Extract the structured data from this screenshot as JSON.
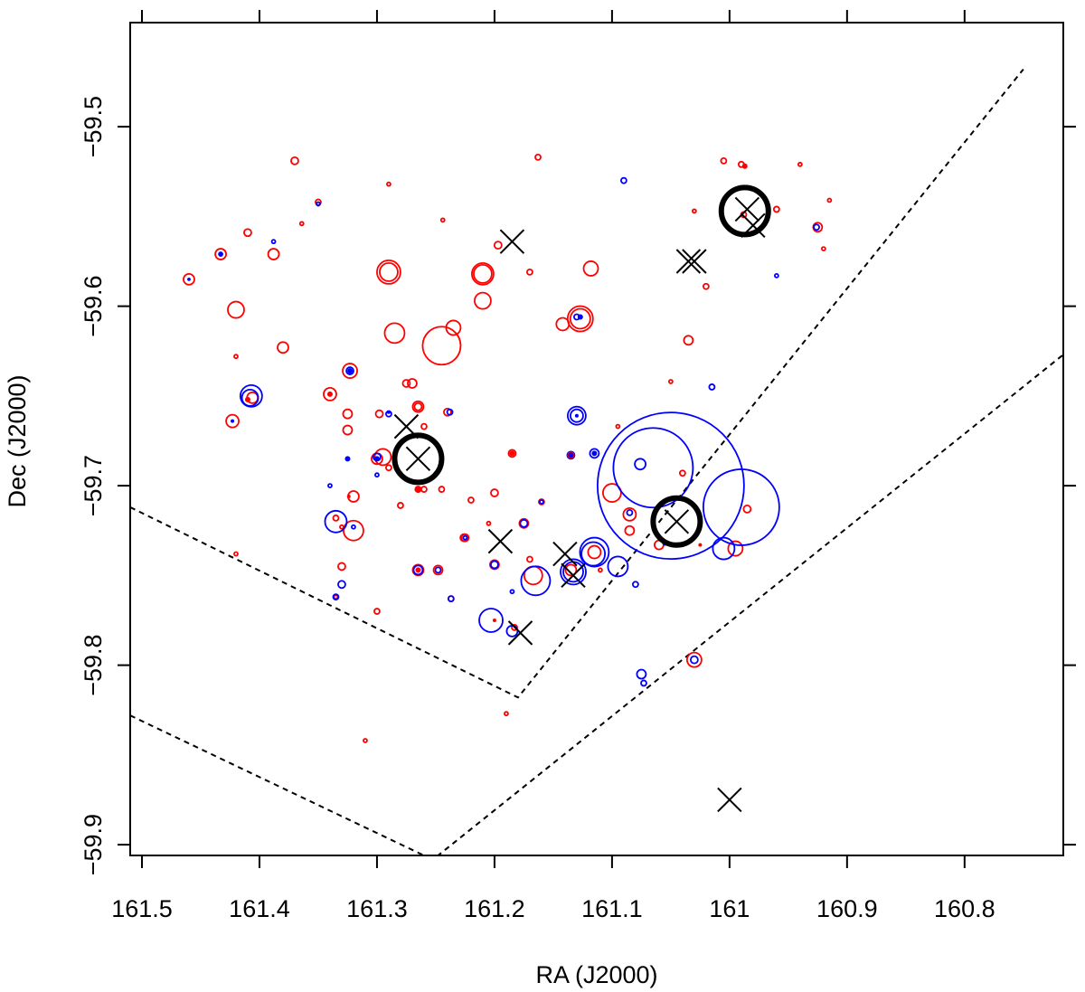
{
  "chart_data": {
    "type": "scatter",
    "title": "",
    "xlabel": "RA (J2000)",
    "ylabel": "Dec (J2000)",
    "xlim": [
      161.51,
      160.716
    ],
    "ylim": [
      -59.906,
      -59.442
    ],
    "x_ticks": [
      161.5,
      161.4,
      161.3,
      161.2,
      161.1,
      161.0,
      160.9,
      160.8
    ],
    "x_tick_labels": [
      "161.5",
      "161.4",
      "161.3",
      "161.2",
      "161.1",
      "161",
      "160.9",
      "160.8"
    ],
    "y_ticks": [
      -59.5,
      -59.6,
      -59.7,
      -59.8,
      -59.9
    ],
    "y_tick_labels": [
      "−59.5",
      "−59.6",
      "−59.7",
      "−59.8",
      "−59.9"
    ],
    "colors": {
      "red": "#ff0000",
      "blue": "#0000ff",
      "black": "#000000"
    },
    "series": [
      {
        "name": "red circles",
        "color": "red",
        "points": [
          [
            161.46,
            -59.585,
            6
          ],
          [
            161.433,
            -59.571,
            6
          ],
          [
            161.42,
            -59.602,
            9
          ],
          [
            161.41,
            -59.559,
            4
          ],
          [
            161.388,
            -59.571,
            6
          ],
          [
            161.38,
            -59.623,
            6
          ],
          [
            161.37,
            -59.519,
            4
          ],
          [
            161.29,
            -59.581,
            13
          ],
          [
            161.29,
            -59.581,
            10
          ],
          [
            161.285,
            -59.615,
            11
          ],
          [
            161.245,
            -59.622,
            21
          ],
          [
            161.235,
            -59.612,
            8
          ],
          [
            161.21,
            -59.582,
            12
          ],
          [
            161.21,
            -59.582,
            10
          ],
          [
            161.21,
            -59.597,
            9
          ],
          [
            161.118,
            -59.579,
            8
          ],
          [
            161.127,
            -59.607,
            14
          ],
          [
            161.127,
            -59.607,
            11
          ],
          [
            161.142,
            -59.61,
            7
          ],
          [
            161.17,
            -59.581,
            3
          ],
          [
            161.163,
            -59.517,
            3
          ],
          [
            161.197,
            -59.566,
            4
          ],
          [
            161.244,
            -59.552,
            2
          ],
          [
            161.29,
            -59.532,
            2
          ],
          [
            161.364,
            -59.554,
            2
          ],
          [
            161.35,
            -59.542,
            3
          ],
          [
            161.42,
            -59.628,
            2
          ],
          [
            161.423,
            -59.664,
            7
          ],
          [
            161.406,
            -59.651,
            6
          ],
          [
            161.323,
            -59.636,
            8
          ],
          [
            161.34,
            -59.649,
            7
          ],
          [
            161.325,
            -59.66,
            5
          ],
          [
            161.325,
            -59.669,
            5
          ],
          [
            161.298,
            -59.66,
            4
          ],
          [
            161.3,
            -59.685,
            6
          ],
          [
            161.295,
            -59.684,
            9
          ],
          [
            161.275,
            -59.643,
            4
          ],
          [
            161.27,
            -59.643,
            5
          ],
          [
            161.265,
            -59.656,
            6
          ],
          [
            161.265,
            -59.656,
            4
          ],
          [
            161.24,
            -59.659,
            4
          ],
          [
            161.26,
            -59.667,
            3
          ],
          [
            161.32,
            -59.706,
            6
          ],
          [
            161.28,
            -59.711,
            3
          ],
          [
            161.245,
            -59.702,
            3
          ],
          [
            161.22,
            -59.708,
            3
          ],
          [
            161.2,
            -59.704,
            4
          ],
          [
            161.185,
            -59.682,
            4
          ],
          [
            161.226,
            -59.729,
            4
          ],
          [
            161.32,
            -59.725,
            11
          ],
          [
            161.335,
            -59.718,
            3
          ],
          [
            161.33,
            -59.723,
            2
          ],
          [
            161.33,
            -59.745,
            4
          ],
          [
            161.335,
            -59.762,
            2
          ],
          [
            161.3,
            -59.77,
            3
          ],
          [
            161.265,
            -59.747,
            6
          ],
          [
            161.248,
            -59.747,
            5
          ],
          [
            161.237,
            -59.763,
            3
          ],
          [
            161.2,
            -59.744,
            5
          ],
          [
            161.175,
            -59.721,
            5
          ],
          [
            161.167,
            -59.75,
            10
          ],
          [
            161.16,
            -59.709,
            3
          ],
          [
            161.17,
            -59.741,
            3
          ],
          [
            161.135,
            -59.747,
            6
          ],
          [
            161.115,
            -59.737,
            7
          ],
          [
            161.11,
            -59.747,
            2
          ],
          [
            161.1,
            -59.704,
            10
          ],
          [
            161.085,
            -59.716,
            7
          ],
          [
            161.085,
            -59.725,
            5
          ],
          [
            161.095,
            -59.667,
            2
          ],
          [
            161.06,
            -59.733,
            5
          ],
          [
            161.05,
            -59.642,
            2
          ],
          [
            161.04,
            -59.693,
            3
          ],
          [
            161.035,
            -59.619,
            5
          ],
          [
            161.02,
            -59.589,
            3
          ],
          [
            161.005,
            -59.519,
            3
          ],
          [
            160.99,
            -59.521,
            3
          ],
          [
            160.988,
            -59.549,
            3
          ],
          [
            160.96,
            -59.546,
            3
          ],
          [
            160.94,
            -59.521,
            2
          ],
          [
            160.925,
            -59.556,
            5
          ],
          [
            160.92,
            -59.568,
            2
          ],
          [
            160.915,
            -59.541,
            2
          ],
          [
            160.995,
            -59.735,
            8
          ],
          [
            160.985,
            -59.713,
            4
          ],
          [
            161.03,
            -59.797,
            8
          ],
          [
            161.03,
            -59.547,
            2
          ],
          [
            161.31,
            -59.842,
            2
          ],
          [
            161.19,
            -59.827,
            2
          ],
          [
            161.205,
            -59.721,
            2
          ],
          [
            161.26,
            -59.702,
            3
          ],
          [
            161.42,
            -59.738,
            2
          ],
          [
            161.29,
            -59.69,
            3
          ],
          [
            161.225,
            -59.729,
            4
          ],
          [
            161.183,
            -59.779,
            3
          ]
        ]
      },
      {
        "name": "blue circles",
        "color": "blue",
        "points": [
          [
            161.05,
            -59.7,
            81
          ],
          [
            161.065,
            -59.69,
            44
          ],
          [
            160.99,
            -59.712,
            42
          ],
          [
            161.165,
            -59.753,
            16
          ],
          [
            161.115,
            -59.737,
            16
          ],
          [
            161.116,
            -59.738,
            13
          ],
          [
            161.133,
            -59.748,
            14
          ],
          [
            161.133,
            -59.748,
            11
          ],
          [
            161.203,
            -59.775,
            13
          ],
          [
            161.095,
            -59.745,
            11
          ],
          [
            161.005,
            -59.735,
            12
          ],
          [
            161.335,
            -59.72,
            12
          ],
          [
            161.407,
            -59.65,
            12
          ],
          [
            161.408,
            -59.651,
            9
          ],
          [
            161.13,
            -59.661,
            10
          ],
          [
            161.13,
            -59.661,
            7
          ],
          [
            161.076,
            -59.688,
            6
          ],
          [
            161.075,
            -59.805,
            5
          ],
          [
            161.03,
            -59.797,
            4
          ],
          [
            161.185,
            -59.781,
            6
          ],
          [
            161.265,
            -59.747,
            5
          ],
          [
            161.33,
            -59.755,
            4
          ],
          [
            161.323,
            -59.636,
            4
          ],
          [
            161.3,
            -59.684,
            4
          ],
          [
            161.2,
            -59.744,
            4
          ],
          [
            161.135,
            -59.683,
            4
          ],
          [
            161.115,
            -59.682,
            5
          ],
          [
            161.175,
            -59.721,
            4
          ],
          [
            161.237,
            -59.763,
            3
          ],
          [
            161.248,
            -59.747,
            3
          ],
          [
            161.085,
            -59.715,
            3
          ],
          [
            161.08,
            -59.755,
            3
          ],
          [
            161.073,
            -59.81,
            3
          ],
          [
            161.015,
            -59.645,
            3
          ],
          [
            160.96,
            -59.583,
            2
          ],
          [
            161.13,
            -59.606,
            3
          ],
          [
            161.238,
            -59.659,
            3
          ],
          [
            161.16,
            -59.709,
            2
          ],
          [
            161.433,
            -59.571,
            2
          ],
          [
            161.388,
            -59.564,
            2
          ],
          [
            161.35,
            -59.543,
            2
          ],
          [
            161.09,
            -59.53,
            3
          ],
          [
            161.29,
            -59.66,
            3
          ],
          [
            161.3,
            -59.694,
            2
          ],
          [
            161.335,
            -59.762,
            3
          ],
          [
            161.34,
            -59.7,
            2
          ],
          [
            161.32,
            -59.723,
            2
          ],
          [
            161.225,
            -59.729,
            2
          ],
          [
            161.185,
            -59.759,
            2
          ],
          [
            161.055,
            -59.732,
            2
          ],
          [
            160.926,
            -59.556,
            3
          ],
          [
            161.46,
            -59.585,
            1
          ]
        ]
      },
      {
        "name": "red filled dots",
        "color": "red",
        "points": [
          [
            161.265,
            -59.702,
            4
          ],
          [
            161.135,
            -59.683,
            4
          ],
          [
            161.185,
            -59.682,
            3
          ],
          [
            160.987,
            -59.522,
            3
          ],
          [
            161.34,
            -59.649,
            3
          ],
          [
            161.41,
            -59.652,
            3
          ],
          [
            161.324,
            -59.706,
            2
          ],
          [
            161.265,
            -59.747,
            3
          ],
          [
            161.2,
            -59.775,
            2
          ],
          [
            161.025,
            -59.733,
            2
          ]
        ]
      },
      {
        "name": "blue filled dots",
        "color": "blue",
        "points": [
          [
            161.127,
            -59.606,
            3
          ],
          [
            161.323,
            -59.636,
            3
          ],
          [
            161.3,
            -59.685,
            3
          ],
          [
            161.325,
            -59.685,
            3
          ],
          [
            161.135,
            -59.683,
            3
          ],
          [
            161.115,
            -59.682,
            3
          ],
          [
            161.423,
            -59.664,
            2
          ],
          [
            161.433,
            -59.571,
            2
          ],
          [
            161.29,
            -59.659,
            2
          ],
          [
            161.13,
            -59.661,
            2
          ]
        ]
      },
      {
        "name": "black cross markers",
        "color": "black",
        "points": [
          [
            161.185,
            -59.564
          ],
          [
            161.035,
            -59.575
          ],
          [
            161.03,
            -59.575
          ],
          [
            160.985,
            -59.546
          ],
          [
            160.98,
            -59.555
          ],
          [
            161.275,
            -59.667
          ],
          [
            161.265,
            -59.685
          ],
          [
            161.195,
            -59.731
          ],
          [
            161.14,
            -59.738
          ],
          [
            161.133,
            -59.75
          ],
          [
            161.178,
            -59.782
          ],
          [
            161.045,
            -59.72
          ],
          [
            161.0,
            -59.875
          ]
        ]
      },
      {
        "name": "black thick circles",
        "color": "black",
        "points": [
          [
            161.265,
            -59.685,
            26
          ],
          [
            161.045,
            -59.72,
            26
          ],
          [
            160.987,
            -59.547,
            26
          ]
        ]
      }
    ],
    "boundaries": [
      {
        "name": "inner dashed boundary",
        "points": [
          [
            161.51,
            -59.712
          ],
          [
            161.18,
            -59.818
          ],
          [
            160.75,
            -59.468
          ]
        ]
      },
      {
        "name": "outer dashed boundary",
        "points": [
          [
            161.51,
            -59.828
          ],
          [
            161.26,
            -59.906
          ],
          [
            161.248,
            -59.906
          ],
          [
            160.716,
            -59.627
          ]
        ]
      }
    ]
  }
}
